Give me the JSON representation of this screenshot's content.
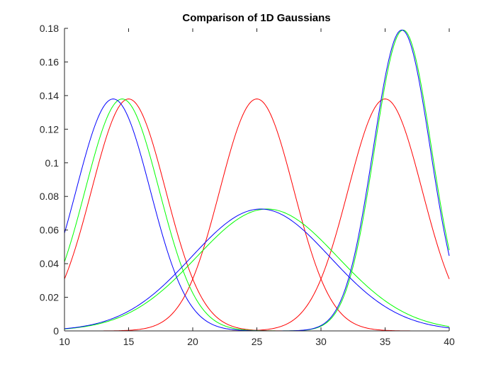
{
  "chart_data": {
    "type": "line",
    "title": "Comparison of 1D Gaussians",
    "xlabel": "",
    "ylabel": "",
    "xlim": [
      10,
      40
    ],
    "ylim": [
      0,
      0.18
    ],
    "xticks": [
      10,
      15,
      20,
      25,
      30,
      35,
      40
    ],
    "yticks": [
      0,
      0.02,
      0.04,
      0.06,
      0.08,
      0.1,
      0.12,
      0.14,
      0.16,
      0.18
    ],
    "xtick_labels": [
      "10",
      "15",
      "20",
      "25",
      "30",
      "35",
      "40"
    ],
    "ytick_labels": [
      "0",
      "0.02",
      "0.04",
      "0.06",
      "0.08",
      "0.1",
      "0.12",
      "0.14",
      "0.16",
      "0.18"
    ],
    "grid": false,
    "legend": "none",
    "series": [
      {
        "color": "#ff0000",
        "shape": "gaussian",
        "peak": 0.138,
        "mean": 15,
        "sd": 2.89
      },
      {
        "color": "#ff0000",
        "shape": "gaussian",
        "peak": 0.138,
        "mean": 25,
        "sd": 2.89
      },
      {
        "color": "#ff0000",
        "shape": "gaussian",
        "peak": 0.138,
        "mean": 35,
        "sd": 2.89
      },
      {
        "color": "#00ff00",
        "shape": "gaussian",
        "peak": 0.138,
        "mean": 14.5,
        "sd": 2.89
      },
      {
        "color": "#00ff00",
        "shape": "gaussian",
        "peak": 0.0725,
        "mean": 25.8,
        "sd": 5.5
      },
      {
        "color": "#00ff00",
        "shape": "gaussian",
        "peak": 0.179,
        "mean": 36.4,
        "sd": 2.22
      },
      {
        "color": "#0000ff",
        "shape": "gaussian",
        "peak": 0.138,
        "mean": 13.8,
        "sd": 2.89
      },
      {
        "color": "#0000ff",
        "shape": "gaussian",
        "peak": 0.0725,
        "mean": 25.3,
        "sd": 5.4
      },
      {
        "color": "#0000ff",
        "shape": "gaussian",
        "peak": 0.179,
        "mean": 36.3,
        "sd": 2.22
      }
    ]
  }
}
